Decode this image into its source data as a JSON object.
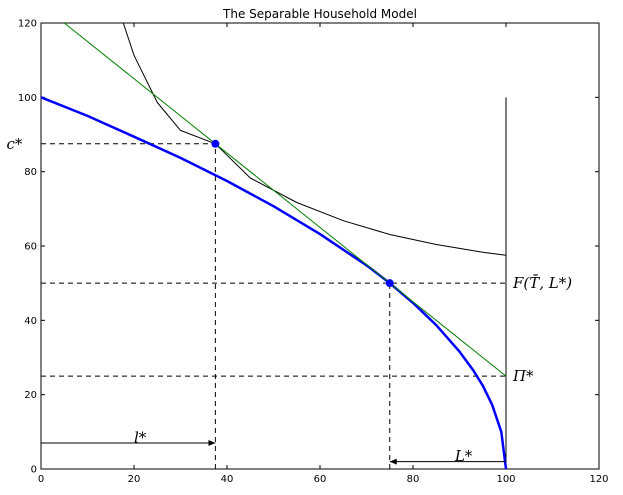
{
  "chart_data": {
    "type": "line",
    "title": "The Separable Household Model",
    "xlabel": "",
    "ylabel": "",
    "xlim": [
      0,
      120
    ],
    "ylim": [
      0,
      120
    ],
    "xticks": [
      0,
      20,
      40,
      60,
      80,
      100,
      120
    ],
    "yticks": [
      0,
      20,
      40,
      60,
      80,
      100,
      120
    ],
    "grid": false,
    "colors": {
      "frontier": "#0000ff",
      "indifference": "#000000",
      "budget": "#008000",
      "guides": "#000000"
    },
    "series": [
      {
        "kind": "production-frontier",
        "x": [
          0,
          10,
          20,
          30,
          40,
          50,
          60,
          70,
          75,
          80,
          85,
          90,
          93,
          95,
          97,
          99,
          100
        ],
        "y": [
          100,
          95,
          89.4,
          83.7,
          77.5,
          70.7,
          63.2,
          54.8,
          50,
          44.7,
          38.7,
          31.6,
          26.5,
          22.4,
          17.3,
          10,
          0
        ]
      },
      {
        "kind": "indifference-curve",
        "x": [
          17.7,
          20,
          25,
          30,
          37.5,
          45,
          55,
          65,
          75,
          85,
          95,
          100
        ],
        "y": [
          120,
          111.3,
          98.6,
          91.1,
          87.5,
          78.3,
          71.7,
          66.8,
          63.1,
          60.4,
          58.3,
          57.5
        ]
      },
      {
        "kind": "budget-line",
        "x": [
          5,
          100
        ],
        "y": [
          120,
          25
        ]
      }
    ],
    "points": [
      {
        "name": "consumption-optimum",
        "x": 37.5,
        "y": 87.5
      },
      {
        "name": "production-optimum",
        "x": 75,
        "y": 50
      }
    ],
    "guides": {
      "hlines": [
        {
          "y": 87.5,
          "x0": 0,
          "x1": 37.5
        },
        {
          "y": 50,
          "x0": 0,
          "x1": 100
        },
        {
          "y": 25,
          "x0": 0,
          "x1": 100
        }
      ],
      "vlines": [
        {
          "x": 37.5,
          "y0": 0,
          "y1": 87.5
        },
        {
          "x": 75,
          "y0": 0,
          "y1": 50
        }
      ],
      "endowment_line": {
        "x": 100,
        "y0": 0,
        "y1": 100
      }
    },
    "arrows": [
      {
        "name": "leisure-arrow",
        "from": [
          0,
          7
        ],
        "to": [
          37.5,
          7
        ]
      },
      {
        "name": "labor-arrow",
        "from": [
          100,
          2
        ],
        "to": [
          75,
          2
        ]
      }
    ],
    "annotations": [
      {
        "name": "c-star",
        "text": "c*",
        "x": -4,
        "y": 87.5
      },
      {
        "name": "F-label",
        "text": "F(T̄, L*)",
        "x": 101.5,
        "y": 50
      },
      {
        "name": "Pi-label",
        "text": "Π*",
        "x": 101.5,
        "y": 25
      },
      {
        "name": "l-star",
        "text": "l*",
        "x": 20,
        "y": 8.5
      },
      {
        "name": "L-star",
        "text": "L*",
        "x": 89,
        "y": 3.5
      }
    ]
  }
}
